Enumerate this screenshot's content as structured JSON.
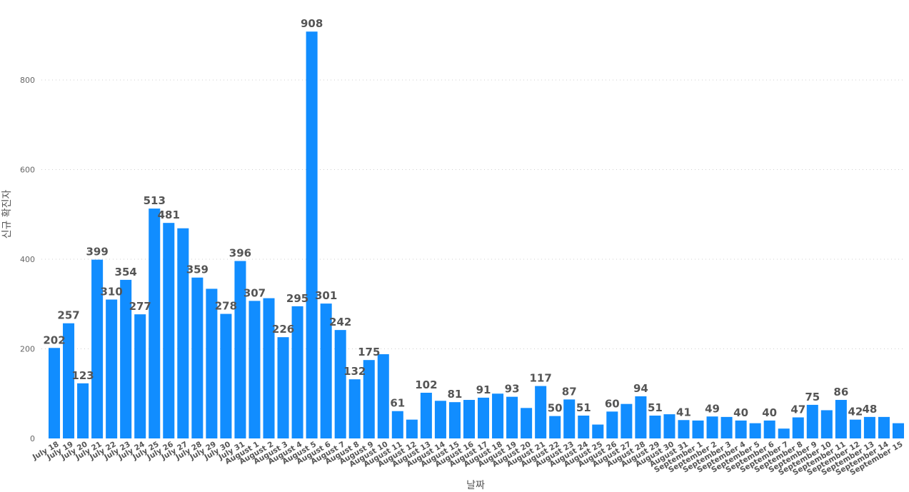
{
  "chart_data": {
    "type": "bar",
    "title": "",
    "xlabel": "날짜",
    "ylabel": "신규 확진자",
    "ylim": [
      0,
      950
    ],
    "yticks": [
      0,
      200,
      400,
      600,
      800
    ],
    "grid": true,
    "bar_color": "#118DFF",
    "categories": [
      "July 18",
      "July 19",
      "July 20",
      "July 21",
      "July 22",
      "July 23",
      "July 24",
      "July 25",
      "July 26",
      "July 27",
      "July 28",
      "July 29",
      "July 30",
      "July 31",
      "August 1",
      "August 2",
      "August 3",
      "August 4",
      "August 5",
      "August 6",
      "August 7",
      "August 8",
      "August 9",
      "August 10",
      "August 11",
      "August 12",
      "August 13",
      "August 14",
      "August 15",
      "August 16",
      "August 17",
      "August 18",
      "August 19",
      "August 20",
      "August 21",
      "August 22",
      "August 23",
      "August 24",
      "August 25",
      "August 26",
      "August 27",
      "August 28",
      "August 29",
      "August 30",
      "August 31",
      "September 1",
      "September 2",
      "September 3",
      "September 4",
      "September 5",
      "September 6",
      "September 7",
      "September 8",
      "September 9",
      "September 10",
      "September 11",
      "September 12",
      "September 13",
      "September 14",
      "September 15"
    ],
    "values": [
      202,
      257,
      123,
      399,
      310,
      354,
      277,
      513,
      481,
      469,
      359,
      334,
      278,
      396,
      307,
      313,
      226,
      295,
      908,
      301,
      242,
      132,
      175,
      188,
      61,
      42,
      102,
      84,
      81,
      86,
      91,
      100,
      93,
      68,
      117,
      50,
      87,
      51,
      31,
      60,
      77,
      94,
      51,
      54,
      41,
      40,
      49,
      48,
      40,
      34,
      40,
      22,
      47,
      75,
      63,
      86,
      42,
      48,
      48,
      34
    ],
    "data_labels": [
      "202",
      "257",
      "123",
      "399",
      "310",
      "354",
      "277",
      "513",
      "481",
      "",
      "359",
      "",
      "278",
      "396",
      "307",
      "",
      "226",
      "295",
      "908",
      "301",
      "242",
      "132",
      "175",
      "",
      "61",
      "",
      "102",
      "",
      "81",
      "",
      "91",
      "",
      "93",
      "",
      "117",
      "50",
      "87",
      "51",
      "",
      "60",
      "",
      "94",
      "51",
      "",
      "41",
      "",
      "49",
      "",
      "40",
      "",
      "40",
      "",
      "47",
      "75",
      "",
      "86",
      "42",
      "48",
      "",
      ""
    ]
  }
}
